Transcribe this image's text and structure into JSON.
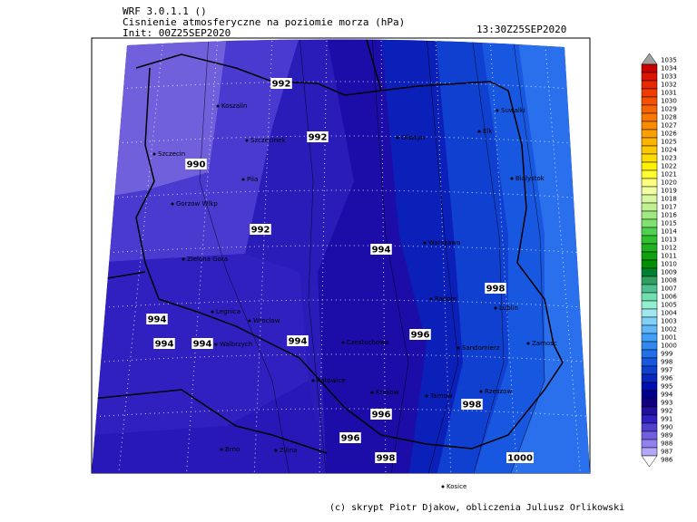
{
  "header": {
    "model": "WRF 3.0.1.1 ()",
    "title": "Cisnienie atmosferyczne na poziomie morza (hPa)",
    "init": "Init: 00Z25SEP2020",
    "valid": "13:30Z25SEP2020"
  },
  "isobar_labels": [
    992,
    992,
    990,
    992,
    994,
    998,
    994,
    994,
    994,
    994,
    996,
    998,
    996,
    996,
    998,
    1000
  ],
  "cities": [
    "Koszalin",
    "Szczecinek",
    "Szczecin",
    "Pila",
    "Gorzow Wlkp",
    "Zielona Gora",
    "Legnica",
    "Walbrzych",
    "Wroclaw",
    "Czestochowa",
    "Katowice",
    "Krakow",
    "Radom",
    "Warszawa",
    "Olsztyn",
    "Elk",
    "Suwalki",
    "Bialystok",
    "Lublin",
    "Zamosc",
    "Sandomierz",
    "Tarnow",
    "Rzeszow",
    "Kosice",
    "Brno",
    "Zilina"
  ],
  "colorbar": {
    "levels": [
      1035,
      1034,
      1033,
      1032,
      1031,
      1030,
      1029,
      1028,
      1027,
      1026,
      1025,
      1024,
      1023,
      1022,
      1021,
      1020,
      1019,
      1018,
      1017,
      1016,
      1015,
      1014,
      1013,
      1012,
      1011,
      1010,
      1009,
      1008,
      1007,
      1006,
      1005,
      1004,
      1003,
      1002,
      1001,
      1000,
      999,
      998,
      997,
      996,
      995,
      994,
      993,
      992,
      991,
      990,
      989,
      988,
      987,
      986
    ],
    "colors": [
      "#a0a0a0",
      "#c80000",
      "#dc1400",
      "#e82800",
      "#f03c00",
      "#f55000",
      "#f86400",
      "#fa7800",
      "#fb8c00",
      "#fca000",
      "#fdb400",
      "#fec800",
      "#ffdc00",
      "#fff000",
      "#ffff30",
      "#ffff80",
      "#f0ffa0",
      "#d8f8a0",
      "#c0f090",
      "#a0e880",
      "#80e070",
      "#50d050",
      "#30c030",
      "#20b020",
      "#10a010",
      "#009000",
      "#008030",
      "#30a060",
      "#50c090",
      "#70e0b0",
      "#90f0d0",
      "#a0e8f0",
      "#80d0f8",
      "#60b8f8",
      "#40a0f8",
      "#3088f0",
      "#2070e8",
      "#1858e0",
      "#1040d0",
      "#0828c0",
      "#0010b0",
      "#000090",
      "#100080",
      "#2010a0",
      "#3020c0",
      "#5040d0",
      "#7060e0",
      "#9080f0",
      "#b0a8f8",
      "#ffffff"
    ]
  },
  "footer": "(c) skrypt Piotr Djakow, obliczenia Juliusz Orlikowski"
}
